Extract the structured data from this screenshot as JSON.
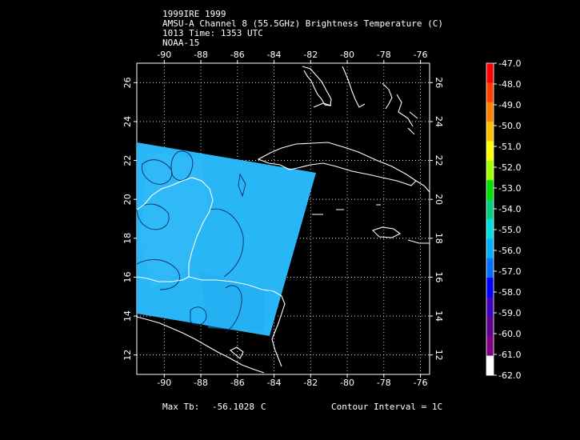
{
  "header": {
    "line1": "1999IRE 1999",
    "line2": "AMSU-A Channel 8 (55.5GHz) Brightness Temperature (C)",
    "line3": "1013 Time: 1353 UTC",
    "line4": "NOAA-15"
  },
  "map": {
    "lon_ticks": [
      "-90",
      "-88",
      "-86",
      "-84",
      "-82",
      "-80",
      "-78",
      "-76"
    ],
    "lat_ticks": [
      "26",
      "24",
      "22",
      "20",
      "18",
      "16",
      "14",
      "12"
    ],
    "lon_range": [
      -91.5,
      -75.5
    ],
    "lat_range": [
      11,
      27
    ],
    "swath_color": "#29b6f6",
    "coast_color": "#ffffff"
  },
  "colorbar": {
    "labels": [
      "-47.0",
      "-48.0",
      "-49.0",
      "-50.0",
      "-51.0",
      "-52.0",
      "-53.0",
      "-54.0",
      "-55.0",
      "-56.0",
      "-57.0",
      "-58.0",
      "-59.0",
      "-60.0",
      "-61.0",
      "-62.0"
    ],
    "colors": [
      "#ff0000",
      "#ff4000",
      "#ff8000",
      "#ffc000",
      "#ffff00",
      "#a0ff00",
      "#00e000",
      "#00d080",
      "#00e0e0",
      "#00b0ff",
      "#0070ff",
      "#0000ff",
      "#4000c0",
      "#600090",
      "#800080",
      "#ffffff"
    ]
  },
  "footer": {
    "max_tb_label": "Max Tb:",
    "max_tb_value": "-56.1028",
    "max_tb_unit": "C",
    "contour_interval": "Contour Interval = 1C"
  }
}
